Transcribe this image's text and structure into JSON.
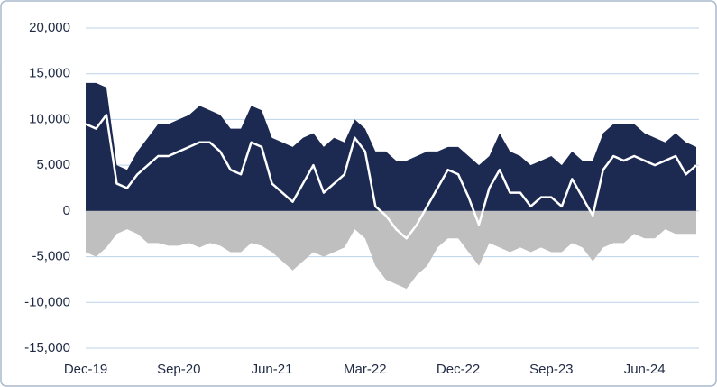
{
  "chart_data": {
    "type": "area",
    "categories": [
      "Dec-19",
      null,
      null,
      null,
      null,
      null,
      null,
      null,
      null,
      "Sep-20",
      null,
      null,
      null,
      null,
      null,
      null,
      null,
      null,
      "Jun-21",
      null,
      null,
      null,
      null,
      null,
      null,
      null,
      null,
      "Mar-22",
      null,
      null,
      null,
      null,
      null,
      null,
      null,
      null,
      "Dec-22",
      null,
      null,
      null,
      null,
      null,
      null,
      null,
      null,
      "Sep-23",
      null,
      null,
      null,
      null,
      null,
      null,
      null,
      null,
      "Jun-24",
      null,
      null,
      null,
      null,
      null
    ],
    "series": [
      {
        "style": "area",
        "color": "#1c2a52",
        "values": [
          14000,
          14000,
          13500,
          5000,
          4500,
          6500,
          8000,
          9500,
          9500,
          10000,
          10500,
          11500,
          11000,
          10500,
          9000,
          9000,
          11500,
          11000,
          8000,
          7500,
          7000,
          8000,
          8500,
          7000,
          8000,
          7500,
          10000,
          9000,
          6500,
          6500,
          5500,
          5500,
          6000,
          6500,
          6500,
          7000,
          7000,
          6000,
          5000,
          6000,
          8500,
          6500,
          6000,
          5000,
          5500,
          6000,
          5000,
          6500,
          5500,
          5500,
          8500,
          9500,
          9500,
          9500,
          8500,
          8000,
          7500,
          8500,
          7500,
          7000
        ]
      },
      {
        "style": "area",
        "color": "#bfbfbf",
        "values": [
          -4500,
          -5000,
          -4000,
          -2500,
          -2000,
          -2500,
          -3500,
          -3500,
          -3800,
          -3800,
          -3500,
          -4000,
          -3500,
          -3800,
          -4500,
          -4500,
          -3500,
          -3800,
          -4500,
          -5500,
          -6500,
          -5500,
          -4500,
          -5000,
          -4500,
          -4000,
          -2000,
          -3000,
          -6000,
          -7500,
          -8000,
          -8500,
          -7000,
          -6000,
          -4000,
          -3000,
          -3000,
          -4500,
          -6000,
          -3500,
          -4000,
          -4500,
          -4000,
          -4500,
          -4000,
          -4500,
          -4500,
          -3500,
          -4000,
          -5500,
          -4000,
          -3500,
          -3500,
          -2500,
          -3000,
          -3000,
          -2000,
          -2500,
          -2500,
          -2500
        ]
      },
      {
        "style": "line",
        "color": "#ffffff",
        "values": [
          9500,
          9000,
          10500,
          3000,
          2500,
          4000,
          5000,
          6000,
          6000,
          6500,
          7000,
          7500,
          7500,
          6500,
          4500,
          4000,
          7500,
          7000,
          3000,
          2000,
          1000,
          3000,
          5000,
          2000,
          3000,
          4000,
          8000,
          6500,
          500,
          -500,
          -2000,
          -3000,
          -1500,
          500,
          2500,
          4500,
          4000,
          1500,
          -1500,
          2500,
          4500,
          2000,
          2000,
          500,
          1500,
          1500,
          500,
          3500,
          1500,
          -500,
          4500,
          6000,
          5500,
          6000,
          5500,
          5000,
          5500,
          6000,
          4000,
          5000
        ]
      }
    ],
    "ylim": [
      -15000,
      20000
    ],
    "yticks": [
      {
        "value": 20000,
        "label": "20,000"
      },
      {
        "value": 15000,
        "label": "15,000"
      },
      {
        "value": 10000,
        "label": "10,000"
      },
      {
        "value": 5000,
        "label": "5,000"
      },
      0,
      {
        "value": -5000,
        "label": "-5,000"
      },
      {
        "value": -10000,
        "label": "-10,000"
      },
      {
        "value": -15000,
        "label": "-15,000"
      }
    ],
    "grid": true
  }
}
